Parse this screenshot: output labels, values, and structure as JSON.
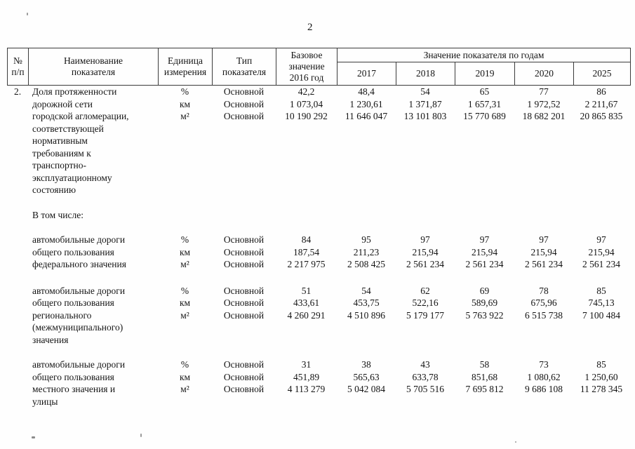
{
  "page": {
    "number": "2"
  },
  "table": {
    "header": {
      "num": "№\nп/п",
      "name": "Наименование\nпоказателя",
      "unit": "Единица\nизмерения",
      "type": "Тип\nпоказателя",
      "base": "Базовое\nзначение\n2016 год",
      "years_group": "Значение показателя по годам",
      "years": [
        "2017",
        "2018",
        "2019",
        "2020",
        "2025"
      ]
    },
    "interlude": "В том числе:",
    "blocks": [
      {
        "num": "2.",
        "name_lines": [
          "Доля протяженности",
          "дорожной сети",
          "городской агломерации,",
          "соответствующей",
          "нормативным",
          "требованиям к",
          "транспортно-",
          "эксплуатационному",
          "состоянию"
        ],
        "units": [
          "%",
          "км",
          "м²"
        ],
        "types": [
          "Основной",
          "Основной",
          "Основной"
        ],
        "base": [
          "42,2",
          "1 073,04",
          "10 190 292"
        ],
        "year_cols": [
          [
            "48,4",
            "1 230,61",
            "11 646 047"
          ],
          [
            "54",
            "1 371,87",
            "13 101 803"
          ],
          [
            "65",
            "1 657,31",
            "15 770 689"
          ],
          [
            "77",
            "1 972,52",
            "18 682 201"
          ],
          [
            "86",
            "2 211,67",
            "20 865 835"
          ]
        ]
      },
      {
        "num": "",
        "name_lines": [
          "автомобильные дороги",
          "общего пользования",
          "федерального значения"
        ],
        "units": [
          "%",
          "км",
          "м²"
        ],
        "types": [
          "Основной",
          "Основной",
          "Основной"
        ],
        "base": [
          "84",
          "187,54",
          "2 217 975"
        ],
        "year_cols": [
          [
            "95",
            "211,23",
            "2 508 425"
          ],
          [
            "97",
            "215,94",
            "2 561 234"
          ],
          [
            "97",
            "215,94",
            "2 561 234"
          ],
          [
            "97",
            "215,94",
            "2 561 234"
          ],
          [
            "97",
            "215,94",
            "2 561 234"
          ]
        ]
      },
      {
        "num": "",
        "name_lines": [
          "автомобильные дороги",
          "общего пользования",
          "регионального",
          "(межмуниципального)",
          "значения"
        ],
        "units": [
          "%",
          "км",
          "м²"
        ],
        "types": [
          "Основной",
          "Основной",
          "Основной"
        ],
        "base": [
          "51",
          "433,61",
          "4 260 291"
        ],
        "year_cols": [
          [
            "54",
            "453,75",
            "4 510 896"
          ],
          [
            "62",
            "522,16",
            "5 179 177"
          ],
          [
            "69",
            "589,69",
            "5 763 922"
          ],
          [
            "78",
            "675,96",
            "6 515 738"
          ],
          [
            "85",
            "745,13",
            "7 100 484"
          ]
        ]
      },
      {
        "num": "",
        "name_lines": [
          "автомобильные дороги",
          "общего пользования",
          "местного значения и",
          "улицы"
        ],
        "units": [
          "%",
          "км",
          "м²"
        ],
        "types": [
          "Основной",
          "Основной",
          "Основной"
        ],
        "base": [
          "31",
          "451,89",
          "4 113 279"
        ],
        "year_cols": [
          [
            "38",
            "565,63",
            "5 042 084"
          ],
          [
            "43",
            "633,78",
            "5 705 516"
          ],
          [
            "58",
            "851,68",
            "7 695 812"
          ],
          [
            "73",
            "1 080,62",
            "9 686 108"
          ],
          [
            "85",
            "1 250,60",
            "11 278 345"
          ]
        ]
      }
    ]
  }
}
